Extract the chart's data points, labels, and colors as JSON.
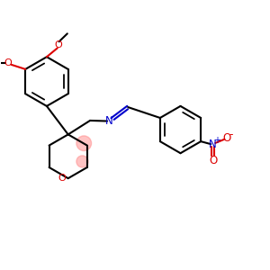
{
  "bg_color": "#ffffff",
  "bond_color": "#000000",
  "heteroatom_color": "#dd0000",
  "nitrogen_color": "#0000cc",
  "lw": 1.5,
  "figsize": [
    3.0,
    3.0
  ],
  "dpi": 100,
  "xlim": [
    0.5,
    10.5
  ],
  "ylim": [
    1.5,
    10.5
  ]
}
